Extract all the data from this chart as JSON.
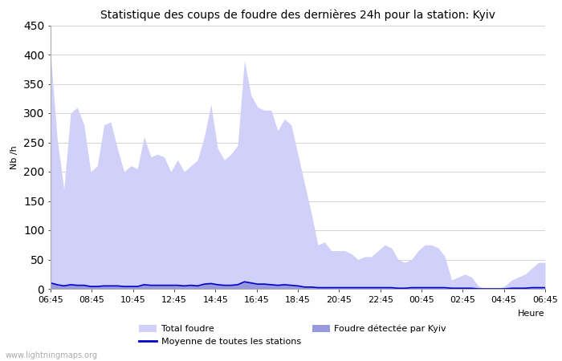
{
  "title": "Statistique des coups de foudre des dernières 24h pour la station: Kyiv",
  "xlabel": "Heure",
  "ylabel": "Nb /h",
  "ylim": [
    0,
    450
  ],
  "yticks": [
    0,
    50,
    100,
    150,
    200,
    250,
    300,
    350,
    400,
    450
  ],
  "x_labels": [
    "06:45",
    "08:45",
    "10:45",
    "12:45",
    "14:45",
    "16:45",
    "18:45",
    "20:45",
    "22:45",
    "00:45",
    "02:45",
    "04:45",
    "06:45"
  ],
  "watermark": "www.lightningmaps.org",
  "total_foudre_color": "#d0d0f8",
  "kyiv_color": "#9999dd",
  "moyenne_color": "#0000cc",
  "background_color": "#ffffff",
  "total_foudre": [
    400,
    255,
    170,
    300,
    310,
    280,
    200,
    210,
    280,
    285,
    240,
    200,
    210,
    205,
    260,
    225,
    230,
    225,
    200,
    220,
    200,
    210,
    220,
    260,
    315,
    240,
    220,
    230,
    245,
    390,
    330,
    310,
    305,
    305,
    270,
    290,
    280,
    230,
    180,
    130,
    75,
    80,
    65,
    65,
    65,
    60,
    50,
    55,
    55,
    65,
    75,
    70,
    50,
    45,
    50,
    65,
    75,
    75,
    70,
    55,
    15,
    20,
    25,
    20,
    5,
    0,
    0,
    0,
    5,
    15,
    20,
    25,
    35,
    45,
    45
  ],
  "kyiv_detected": [
    10,
    8,
    5,
    8,
    7,
    6,
    5,
    5,
    6,
    6,
    5,
    4,
    5,
    5,
    8,
    6,
    7,
    7,
    6,
    7,
    5,
    6,
    6,
    8,
    10,
    8,
    7,
    7,
    8,
    13,
    11,
    9,
    9,
    8,
    7,
    8,
    7,
    5,
    4,
    4,
    3,
    3,
    2,
    2,
    2,
    2,
    2,
    2,
    2,
    2,
    2,
    2,
    1,
    1,
    2,
    2,
    2,
    2,
    2,
    2,
    1,
    1,
    1,
    1,
    0,
    0,
    0,
    0,
    0,
    1,
    1,
    1,
    2,
    2,
    2
  ],
  "moyenne": [
    10,
    7,
    5,
    7,
    6,
    6,
    4,
    4,
    5,
    5,
    5,
    4,
    4,
    4,
    7,
    6,
    6,
    6,
    6,
    6,
    5,
    6,
    5,
    8,
    9,
    7,
    6,
    6,
    7,
    12,
    10,
    8,
    8,
    7,
    6,
    7,
    6,
    5,
    3,
    3,
    2,
    2,
    2,
    2,
    2,
    2,
    2,
    2,
    2,
    2,
    2,
    2,
    1,
    1,
    2,
    2,
    2,
    2,
    2,
    2,
    1,
    1,
    1,
    1,
    0,
    0,
    0,
    0,
    0,
    1,
    1,
    1,
    2,
    2,
    2
  ],
  "n_points": 75,
  "legend_items": [
    {
      "label": "Total foudre",
      "type": "patch",
      "color": "#d0d0f8"
    },
    {
      "label": "Moyenne de toutes les stations",
      "type": "line",
      "color": "#0000cc"
    },
    {
      "label": "Foudre détectée par Kyiv",
      "type": "patch",
      "color": "#9999dd"
    }
  ],
  "title_fontsize": 10,
  "axis_fontsize": 8,
  "tick_fontsize": 8
}
